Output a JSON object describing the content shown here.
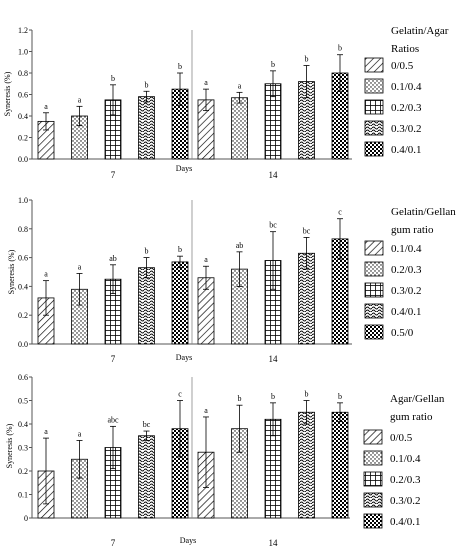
{
  "chart_data": [
    {
      "type": "bar",
      "ylabel": "Syneresis (%)",
      "xlabel": "Days",
      "groups": [
        "7",
        "14"
      ],
      "ylim": [
        0,
        1.2
      ],
      "yticks": [
        "0.0",
        "0.2",
        "0.4",
        "0.6",
        "0.8",
        "1.0",
        "1.2"
      ],
      "legend_title": [
        "Gelatin/Agar",
        "Ratios"
      ],
      "legend_position": "right",
      "series": [
        {
          "name": "0/0.5",
          "pattern": "diag",
          "values": [
            0.35,
            0.55
          ],
          "errors": [
            0.08,
            0.1
          ],
          "letters": [
            "a",
            "a"
          ]
        },
        {
          "name": "0.1/0.4",
          "pattern": "dots",
          "values": [
            0.4,
            0.57
          ],
          "errors": [
            0.09,
            0.05
          ],
          "letters": [
            "a",
            "a"
          ]
        },
        {
          "name": "0.2/0.3",
          "pattern": "grid",
          "values": [
            0.55,
            0.7
          ],
          "errors": [
            0.14,
            0.12
          ],
          "letters": [
            "b",
            "b"
          ]
        },
        {
          "name": "0.3/0.2",
          "pattern": "wave",
          "values": [
            0.58,
            0.72
          ],
          "errors": [
            0.05,
            0.15
          ],
          "letters": [
            "b",
            "b"
          ]
        },
        {
          "name": "0.4/0.1",
          "pattern": "check",
          "values": [
            0.65,
            0.8
          ],
          "errors": [
            0.15,
            0.17
          ],
          "letters": [
            "b",
            "b"
          ]
        }
      ]
    },
    {
      "type": "bar",
      "ylabel": "Syneresis (%)",
      "xlabel": "Days",
      "groups": [
        "7",
        "14"
      ],
      "ylim": [
        0,
        1.0
      ],
      "yticks": [
        "0.0",
        "0.2",
        "0.4",
        "0.6",
        "0.8",
        "1.0"
      ],
      "legend_title": [
        "Gelatin/Gellan",
        "gum ratio"
      ],
      "legend_position": "right",
      "series": [
        {
          "name": "0.1/0.4",
          "pattern": "diag",
          "values": [
            0.32,
            0.46
          ],
          "errors": [
            0.12,
            0.08
          ],
          "letters": [
            "a",
            "a"
          ]
        },
        {
          "name": "0.2/0.3",
          "pattern": "dots",
          "values": [
            0.38,
            0.52
          ],
          "errors": [
            0.11,
            0.12
          ],
          "letters": [
            "a",
            "ab"
          ]
        },
        {
          "name": "0.3/0.2",
          "pattern": "grid",
          "values": [
            0.45,
            0.58
          ],
          "errors": [
            0.1,
            0.2
          ],
          "letters": [
            "ab",
            "bc"
          ]
        },
        {
          "name": "0.4/0.1",
          "pattern": "wave",
          "values": [
            0.53,
            0.63
          ],
          "errors": [
            0.07,
            0.11
          ],
          "letters": [
            "b",
            "bc"
          ]
        },
        {
          "name": "0.5/0",
          "pattern": "check",
          "values": [
            0.57,
            0.73
          ],
          "errors": [
            0.04,
            0.14
          ],
          "letters": [
            "b",
            "c"
          ]
        }
      ]
    },
    {
      "type": "bar",
      "ylabel": "Syneresis (%)",
      "xlabel": "Days",
      "groups": [
        "7",
        "14"
      ],
      "ylim": [
        0,
        0.6
      ],
      "yticks": [
        "0",
        "0.1",
        "0.2",
        "0.3",
        "0.4",
        "0.5",
        "0.6"
      ],
      "legend_title": [
        "Agar/Gellan",
        "gum ratio"
      ],
      "legend_position": "right",
      "series": [
        {
          "name": "0/0.5",
          "pattern": "diag",
          "values": [
            0.2,
            0.28
          ],
          "errors": [
            0.14,
            0.15
          ],
          "letters": [
            "a",
            "a"
          ]
        },
        {
          "name": "0.1/0.4",
          "pattern": "dots",
          "values": [
            0.25,
            0.38
          ],
          "errors": [
            0.08,
            0.1
          ],
          "letters": [
            "a",
            "b"
          ]
        },
        {
          "name": "0.2/0.3",
          "pattern": "grid",
          "values": [
            0.3,
            0.42
          ],
          "errors": [
            0.09,
            0.07
          ],
          "letters": [
            "abc",
            "b"
          ]
        },
        {
          "name": "0.3/0.2",
          "pattern": "wave",
          "values": [
            0.35,
            0.45
          ],
          "errors": [
            0.02,
            0.05
          ],
          "letters": [
            "bc",
            "b"
          ]
        },
        {
          "name": "0.4/0.1",
          "pattern": "check",
          "values": [
            0.38,
            0.45
          ],
          "errors": [
            0.12,
            0.04
          ],
          "letters": [
            "c",
            "b"
          ]
        }
      ]
    }
  ]
}
